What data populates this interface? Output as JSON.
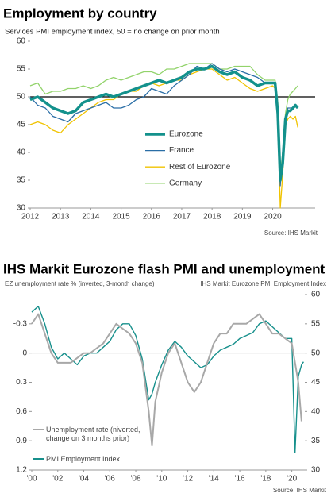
{
  "chart_data": [
    {
      "type": "line",
      "title": "Employment by country",
      "subtitle": "Services PMI employment index, 50 = no change on prior month",
      "source": "Source: IHS Markit",
      "x": [
        2012,
        2012.25,
        2012.5,
        2012.75,
        2013,
        2013.25,
        2013.5,
        2013.75,
        2014,
        2014.25,
        2014.5,
        2014.75,
        2015,
        2015.25,
        2015.5,
        2015.75,
        2016,
        2016.25,
        2016.5,
        2016.75,
        2017,
        2017.25,
        2017.5,
        2017.75,
        2018,
        2018.25,
        2018.5,
        2018.75,
        2019,
        2019.25,
        2019.5,
        2019.75,
        2020,
        2020.08,
        2020.17,
        2020.25,
        2020.33,
        2020.42,
        2020.5,
        2020.58,
        2020.67,
        2020.75,
        2020.83
      ],
      "xlim": [
        2012,
        2021.4
      ],
      "xticks": [
        2012,
        2013,
        2014,
        2015,
        2016,
        2017,
        2018,
        2019,
        2020
      ],
      "ylim": [
        30,
        60
      ],
      "yticks": [
        30,
        35,
        40,
        45,
        50,
        55,
        60
      ],
      "reference_line": 50,
      "legend": "center",
      "series": [
        {
          "name": "Eurozone",
          "color": "#13918c",
          "values": [
            49.5,
            50,
            49,
            48,
            47.5,
            47,
            47.5,
            49,
            49.5,
            50,
            50.5,
            50,
            50.5,
            51,
            51.5,
            52,
            52.5,
            53,
            52.5,
            53,
            53.5,
            54.5,
            55,
            55,
            55.5,
            54.5,
            54,
            54.5,
            53.5,
            53,
            52,
            52.5,
            52.5,
            52.5,
            47,
            35,
            38,
            46,
            47.5,
            47.5,
            48,
            48.5,
            48
          ]
        },
        {
          "name": "France",
          "color": "#2a6ea6",
          "values": [
            50,
            48.5,
            48,
            46.5,
            46,
            45.5,
            47,
            47.5,
            48,
            48.5,
            49,
            48,
            48,
            48.5,
            49.5,
            50,
            51.5,
            51,
            50.5,
            52,
            53,
            54,
            55.5,
            55,
            56,
            55,
            54.5,
            55,
            54.5,
            54,
            53.5,
            52.5,
            52.5,
            52.5,
            47,
            34,
            40,
            46,
            48,
            48,
            48,
            48.5,
            48
          ]
        },
        {
          "name": "Rest of Eurozone",
          "color": "#f0c300",
          "values": [
            45,
            45.5,
            45,
            44,
            43.5,
            45,
            46,
            47,
            48,
            49,
            49.5,
            49.5,
            50.5,
            51,
            51,
            52,
            52.5,
            52,
            52.5,
            53,
            53,
            54,
            54.5,
            55,
            55,
            54,
            53,
            53.5,
            52.5,
            51.5,
            51,
            51.5,
            52,
            51.5,
            46,
            30,
            36,
            45,
            46,
            46.5,
            46,
            46.5,
            44.5
          ]
        },
        {
          "name": "Germany",
          "color": "#92d36b",
          "values": [
            52,
            52.5,
            50.5,
            51,
            51,
            51.5,
            51.5,
            52,
            51.5,
            52,
            53,
            53.5,
            53,
            53.5,
            54,
            54.5,
            54.5,
            54,
            55,
            55,
            55.5,
            56,
            56,
            56,
            56,
            55,
            55,
            55.5,
            55.5,
            55.5,
            54,
            53,
            53,
            53,
            49,
            36,
            40,
            47,
            49.5,
            50.5,
            51,
            51.5,
            52
          ]
        }
      ]
    },
    {
      "type": "line",
      "title": "IHS Markit Eurozone flash PMI and unemployment",
      "y_label": "EZ unemployment  rate % (inverted, 3-month change)",
      "y2_label": "IHS Markit Eurozone PMI Employment Index",
      "source": "Source: IHS Markit",
      "xlim": [
        2000,
        2021
      ],
      "xticks": [
        {
          "value": 2000,
          "label": "'00"
        },
        {
          "value": 2002,
          "label": "'02"
        },
        {
          "value": 2004,
          "label": "'04"
        },
        {
          "value": 2006,
          "label": "'06"
        },
        {
          "value": 2008,
          "label": "'08"
        },
        {
          "value": 2010,
          "label": "'10"
        },
        {
          "value": 2012,
          "label": "'12"
        },
        {
          "value": 2014,
          "label": "'14"
        },
        {
          "value": 2016,
          "label": "'16"
        },
        {
          "value": 2018,
          "label": "'18"
        },
        {
          "value": 2020,
          "label": "'20"
        }
      ],
      "ylim": [
        1.2,
        -0.6
      ],
      "yticks": [
        -0.3,
        0,
        0.3,
        0.6,
        0.9,
        1.2
      ],
      "y2lim": [
        30,
        60
      ],
      "y2ticks": [
        30,
        35,
        40,
        45,
        50,
        55,
        60
      ],
      "reference_line": 0,
      "legend": "lower left",
      "series": [
        {
          "name": "Unemployment rate (niverted, change on 3 months prior)",
          "color": "#a8a8a8",
          "x": [
            2000,
            2000.5,
            2001,
            2001.5,
            2002,
            2002.5,
            2003,
            2003.5,
            2004,
            2004.5,
            2005,
            2005.5,
            2006,
            2006.5,
            2007,
            2007.5,
            2008,
            2008.5,
            2009,
            2009.25,
            2009.5,
            2010,
            2010.5,
            2011,
            2011.5,
            2012,
            2012.5,
            2013,
            2013.5,
            2014,
            2014.5,
            2015,
            2015.5,
            2016,
            2016.5,
            2017,
            2017.5,
            2018,
            2018.5,
            2019,
            2019.5,
            2020,
            2020.25,
            2020.5,
            2020.75
          ],
          "values": [
            -0.3,
            -0.4,
            -0.2,
            0,
            0.1,
            0.1,
            0.1,
            0.05,
            0,
            0,
            -0.05,
            -0.1,
            -0.2,
            -0.3,
            -0.25,
            -0.2,
            -0.1,
            0.1,
            0.6,
            0.95,
            0.5,
            0.2,
            0,
            -0.1,
            0.1,
            0.3,
            0.4,
            0.3,
            0.1,
            -0.1,
            -0.2,
            -0.2,
            -0.3,
            -0.3,
            -0.3,
            -0.35,
            -0.4,
            -0.3,
            -0.2,
            -0.2,
            -0.15,
            -0.1,
            0.1,
            0.3,
            0.7
          ]
        },
        {
          "name": "PMI Employment Index",
          "color": "#17908c",
          "axis": "y2",
          "x": [
            2000,
            2000.5,
            2001,
            2001.5,
            2002,
            2002.5,
            2003,
            2003.5,
            2004,
            2004.5,
            2005,
            2005.5,
            2006,
            2006.5,
            2007,
            2007.5,
            2008,
            2008.5,
            2009,
            2009.25,
            2009.5,
            2010,
            2010.5,
            2011,
            2011.5,
            2012,
            2012.5,
            2013,
            2013.5,
            2014,
            2014.5,
            2015,
            2015.5,
            2016,
            2016.5,
            2017,
            2017.5,
            2018,
            2018.5,
            2019,
            2019.5,
            2020,
            2020.25,
            2020.5,
            2020.75,
            2020.9
          ],
          "values": [
            57,
            58,
            55,
            51,
            49,
            50,
            49,
            48,
            49.5,
            50,
            50,
            51,
            52,
            54,
            55,
            55,
            53,
            49,
            42,
            43,
            45,
            48,
            50.5,
            52,
            51,
            49.5,
            48.5,
            47.5,
            48,
            49.5,
            50.5,
            51,
            51.5,
            52.5,
            53,
            53.5,
            55,
            55.5,
            54.5,
            53.5,
            52.5,
            52.5,
            33,
            46,
            48,
            48.5
          ]
        }
      ]
    }
  ]
}
